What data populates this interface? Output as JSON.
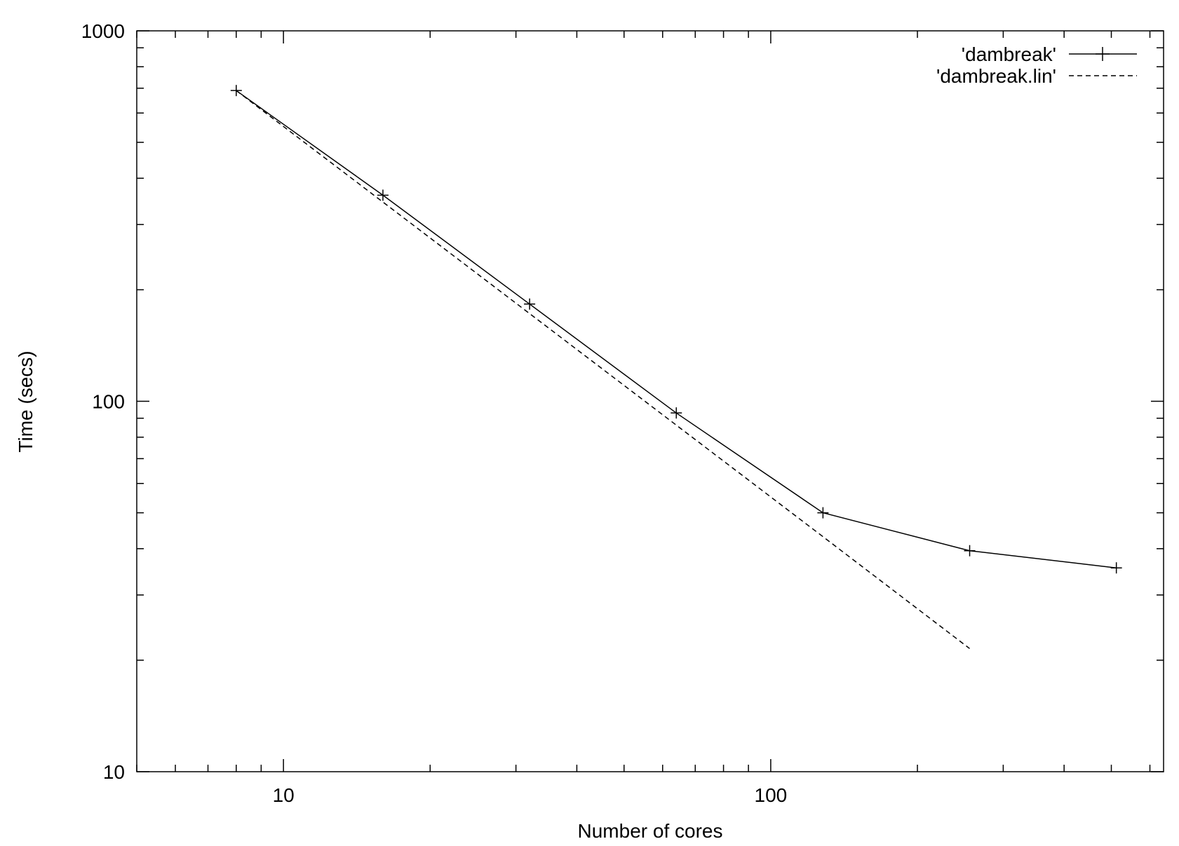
{
  "chart_data": {
    "type": "line",
    "title": "",
    "xlabel": "Number of cores",
    "ylabel": "Time (secs)",
    "xscale": "log",
    "yscale": "log",
    "xlim": [
      5,
      640
    ],
    "ylim": [
      10,
      1000
    ],
    "x_ticks": [
      {
        "value": 10,
        "label": "10"
      },
      {
        "value": 100,
        "label": "100"
      }
    ],
    "y_ticks": [
      {
        "value": 10,
        "label": "10"
      },
      {
        "value": 100,
        "label": "100"
      },
      {
        "value": 1000,
        "label": "1000"
      }
    ],
    "grid": false,
    "legend_position": "top-right",
    "series": [
      {
        "name": "'dambreak'",
        "style": "solid",
        "marker": "plus",
        "color": "#000000",
        "points": [
          [
            8,
            690
          ],
          [
            16,
            360
          ],
          [
            32,
            183
          ],
          [
            64,
            93
          ],
          [
            128,
            50
          ],
          [
            256,
            39.5
          ],
          [
            512,
            35.5
          ]
        ]
      },
      {
        "name": "'dambreak.lin'",
        "style": "dashed",
        "marker": "none",
        "color": "#000000",
        "points": [
          [
            8,
            690
          ],
          [
            16,
            345
          ],
          [
            32,
            172.5
          ],
          [
            64,
            86.25
          ],
          [
            128,
            43.1
          ],
          [
            256,
            21.5
          ]
        ]
      }
    ]
  }
}
